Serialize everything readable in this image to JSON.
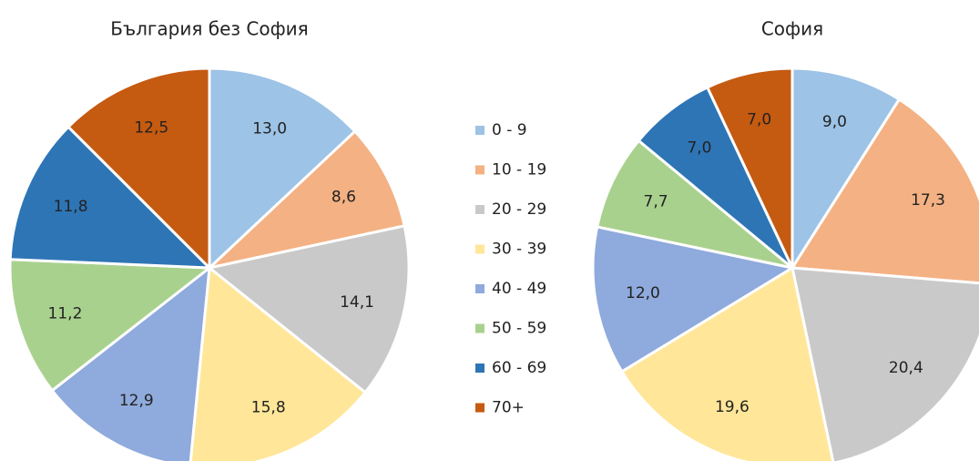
{
  "chart_data": [
    {
      "type": "pie",
      "title": "България без София",
      "categories": [
        "0 - 9",
        "10 - 19",
        "20 - 29",
        "30 - 39",
        "40 - 49",
        "50 - 59",
        "60 - 69",
        "70+"
      ],
      "values": [
        13.0,
        8.6,
        14.1,
        15.8,
        12.9,
        11.2,
        11.8,
        12.5
      ],
      "value_labels": [
        "13,0",
        "8,6",
        "14,1",
        "15,8",
        "12,9",
        "11,2",
        "11,8",
        "12,5"
      ],
      "colors": [
        "#9dc3e6",
        "#f4b183",
        "#c9c9c9",
        "#ffe699",
        "#8faadc",
        "#a9d18e",
        "#2e75b6",
        "#c55a11"
      ]
    },
    {
      "type": "pie",
      "title": "София",
      "values": [
        9.0,
        17.3,
        20.4,
        19.6,
        12.0,
        7.7,
        7.0,
        7.0
      ],
      "value_labels": [
        "9,0",
        "17,3",
        "20,4",
        "19,6",
        "12,0",
        "7,7",
        "7,0",
        "7,0"
      ],
      "colors": [
        "#9dc3e6",
        "#f4b183",
        "#c9c9c9",
        "#ffe699",
        "#8faadc",
        "#a9d18e",
        "#2e75b6",
        "#c55a11"
      ]
    }
  ]
}
